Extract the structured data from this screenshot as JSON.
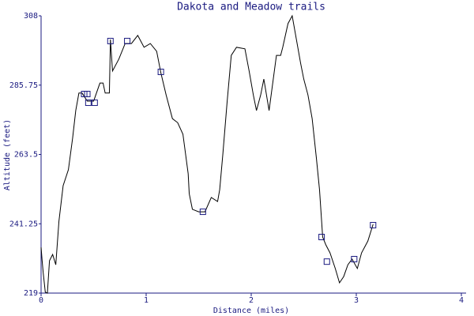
{
  "chart_data": {
    "type": "line",
    "title": "Dakota and Meadow trails",
    "x_label": "Distance (miles)",
    "y_label": "Altitude (feet)",
    "xlim": [
      0,
      4
    ],
    "xticks": [
      0,
      1,
      2,
      3,
      4
    ],
    "ylim": [
      219,
      308
    ],
    "yticks": [
      219,
      241.25,
      263.5,
      285.75,
      308
    ],
    "series": [
      {
        "name": null,
        "color": "#000000",
        "marker": false,
        "x": [
          0,
          0.01,
          0.02,
          0.04,
          0.06,
          0.08,
          0.11,
          0.14,
          0.17,
          0.21,
          0.26,
          0.3,
          0.33,
          0.36,
          0.39,
          0.44,
          0.5,
          0.56,
          0.59,
          0.61,
          0.65,
          0.66,
          0.68,
          0.74,
          0.8,
          0.86,
          0.92,
          0.98,
          1.04,
          1.1,
          1.14,
          1.19,
          1.25,
          1.3,
          1.35,
          1.4,
          1.41,
          1.44,
          1.5,
          1.56,
          1.62,
          1.68,
          1.7,
          1.73,
          1.77,
          1.81,
          1.86,
          1.94,
          1.98,
          2.02,
          2.05,
          2.09,
          2.12,
          2.17,
          2.2,
          2.24,
          2.28,
          2.3,
          2.35,
          2.39,
          2.43,
          2.47,
          2.5,
          2.54,
          2.58,
          2.62,
          2.65,
          2.68,
          2.71,
          2.75,
          2.8,
          2.84,
          2.88,
          2.92,
          2.96,
          3.01,
          3.05,
          3.11,
          3.16
        ],
        "values": [
          233.7,
          229.4,
          225.6,
          219.3,
          219,
          229.4,
          231.4,
          228.1,
          242.1,
          253.5,
          258.6,
          268.7,
          277.6,
          283.2,
          283.2,
          280.6,
          280.6,
          286.4,
          286.4,
          283.2,
          283.2,
          300.4,
          290.3,
          294.1,
          299.1,
          299.1,
          301.7,
          297.9,
          299.1,
          296.6,
          289.7,
          282.6,
          275,
          273.7,
          270,
          257.3,
          250.9,
          245.9,
          245.1,
          245.1,
          249.7,
          248.4,
          252.2,
          263.6,
          280.1,
          295.3,
          297.9,
          297.4,
          290.3,
          282.6,
          277.6,
          282.6,
          287.7,
          277.6,
          285.2,
          295.3,
          295.3,
          297.9,
          305.5,
          308,
          300.4,
          292.8,
          287.7,
          282.6,
          275,
          262.4,
          252.2,
          237,
          234.5,
          231.9,
          226.9,
          222.3,
          224.3,
          228.1,
          229.9,
          226.9,
          231.9,
          235.7,
          241.1
        ]
      },
      {
        "name": null,
        "color": "#1a1a80",
        "marker": true,
        "x": [
          0.41,
          0.44,
          0.45,
          0.51,
          0.66,
          0.82,
          1.14,
          1.54,
          2.67,
          2.72,
          2.98,
          3.16
        ],
        "values": [
          282.9,
          282.9,
          280.1,
          280.1,
          299.9,
          299.9,
          290,
          245.1,
          237,
          229.1,
          229.9,
          240.8
        ]
      }
    ]
  }
}
